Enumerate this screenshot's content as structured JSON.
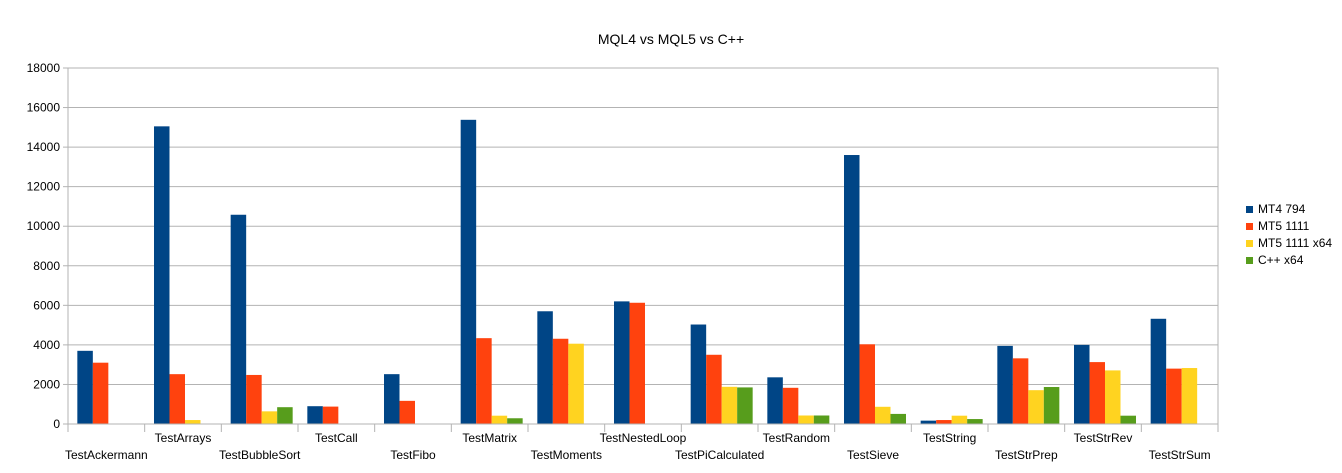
{
  "chart_data": {
    "type": "bar",
    "title": "MQL4 vs MQL5 vs C++",
    "xlabel": "",
    "ylabel": "",
    "ylim": [
      0,
      18000
    ],
    "yticks": [
      0,
      2000,
      4000,
      6000,
      8000,
      10000,
      12000,
      14000,
      16000,
      18000
    ],
    "grid": true,
    "legend_position": "right",
    "categories": [
      "TestAckermann",
      "TestArrays",
      "TestBubbleSort",
      "TestCall",
      "TestFibo",
      "TestMatrix",
      "TestMoments",
      "TestNestedLoop",
      "TestPiCalculated",
      "TestRandom",
      "TestSieve",
      "TestString",
      "TestStrPrep",
      "TestStrRev",
      "TestStrSum"
    ],
    "series": [
      {
        "name": "MT4 794",
        "color": "#004586",
        "values": [
          3700,
          15050,
          10580,
          900,
          2520,
          15380,
          5700,
          6200,
          5030,
          2360,
          13600,
          170,
          3950,
          4000,
          5320
        ]
      },
      {
        "name": "MT5 1111",
        "color": "#ff420e",
        "values": [
          3100,
          2520,
          2480,
          880,
          1170,
          4340,
          4310,
          6130,
          3500,
          1830,
          4030,
          200,
          3320,
          3130,
          2800
        ]
      },
      {
        "name": "MT5 1111 x64",
        "color": "#ffd320",
        "values": [
          0,
          200,
          640,
          0,
          0,
          420,
          4060,
          0,
          1880,
          430,
          870,
          420,
          1710,
          2710,
          2830
        ]
      },
      {
        "name": "C++ x64",
        "color": "#579d1c",
        "values": [
          0,
          20,
          850,
          0,
          0,
          290,
          0,
          0,
          1850,
          430,
          510,
          250,
          1870,
          420,
          0
        ]
      }
    ]
  }
}
